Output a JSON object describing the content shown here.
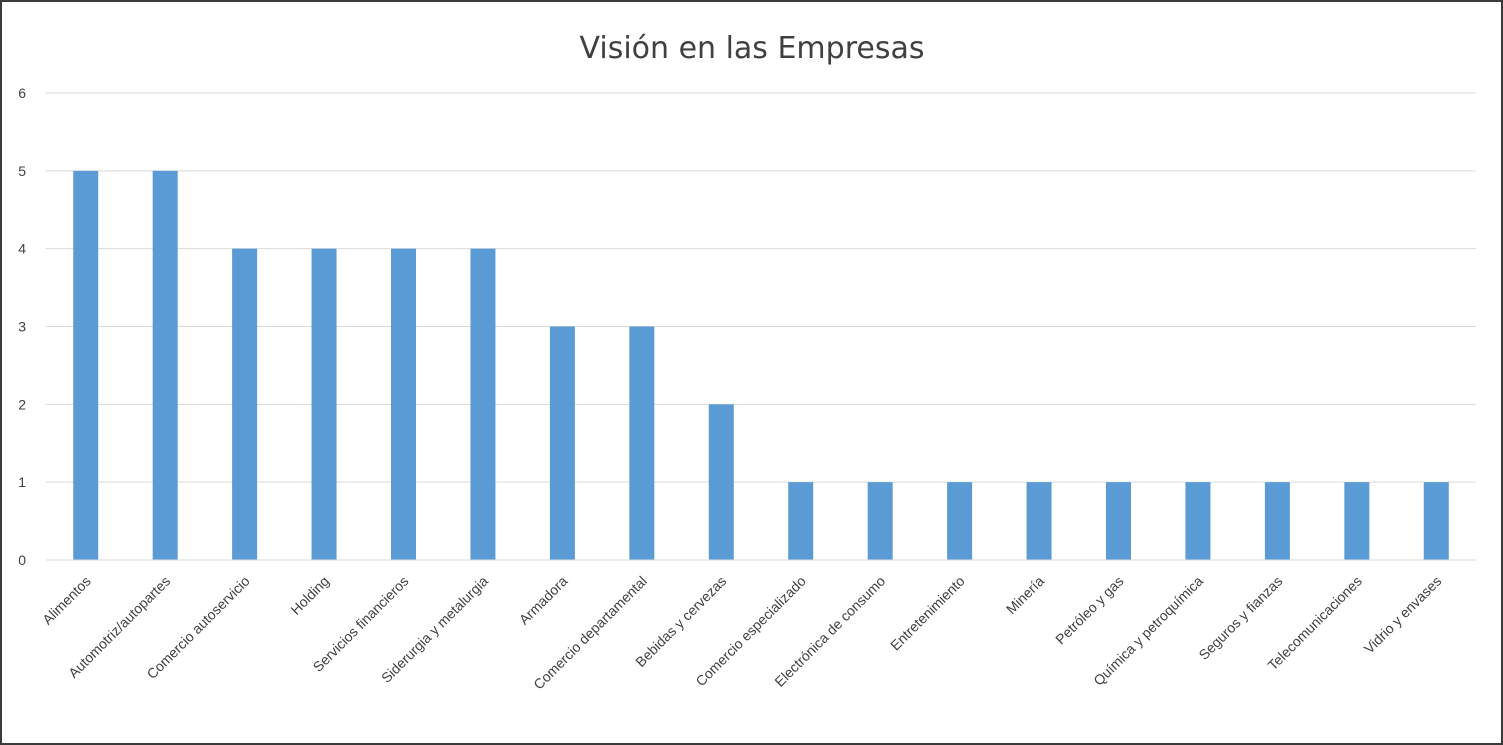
{
  "chart_data": {
    "type": "bar",
    "title": "Visión en las Empresas",
    "xlabel": "",
    "ylabel": "",
    "ylim": [
      0,
      6
    ],
    "yticks": [
      0,
      1,
      2,
      3,
      4,
      5,
      6
    ],
    "grid": true,
    "legend": "none",
    "bar_color": "#5b9bd5",
    "categories": [
      "Alimentos",
      "Automotriz/autopartes",
      "Comercio autoservicio",
      "Holding",
      "Servicios financieros",
      "Siderurgia y metalurgia",
      "Armadora",
      "Comercio departamental",
      "Bebidas y cervezas",
      "Comercio especializado",
      "Electrónica de consumo",
      "Entretenimiento",
      "Minería",
      "Petróleo y gas",
      "Química y petroquímica",
      "Seguros y fianzas",
      "Telecomunicaciones",
      "Vidrio y envases"
    ],
    "values": [
      5,
      5,
      4,
      4,
      4,
      4,
      3,
      3,
      2,
      1,
      1,
      1,
      1,
      1,
      1,
      1,
      1,
      1
    ]
  }
}
